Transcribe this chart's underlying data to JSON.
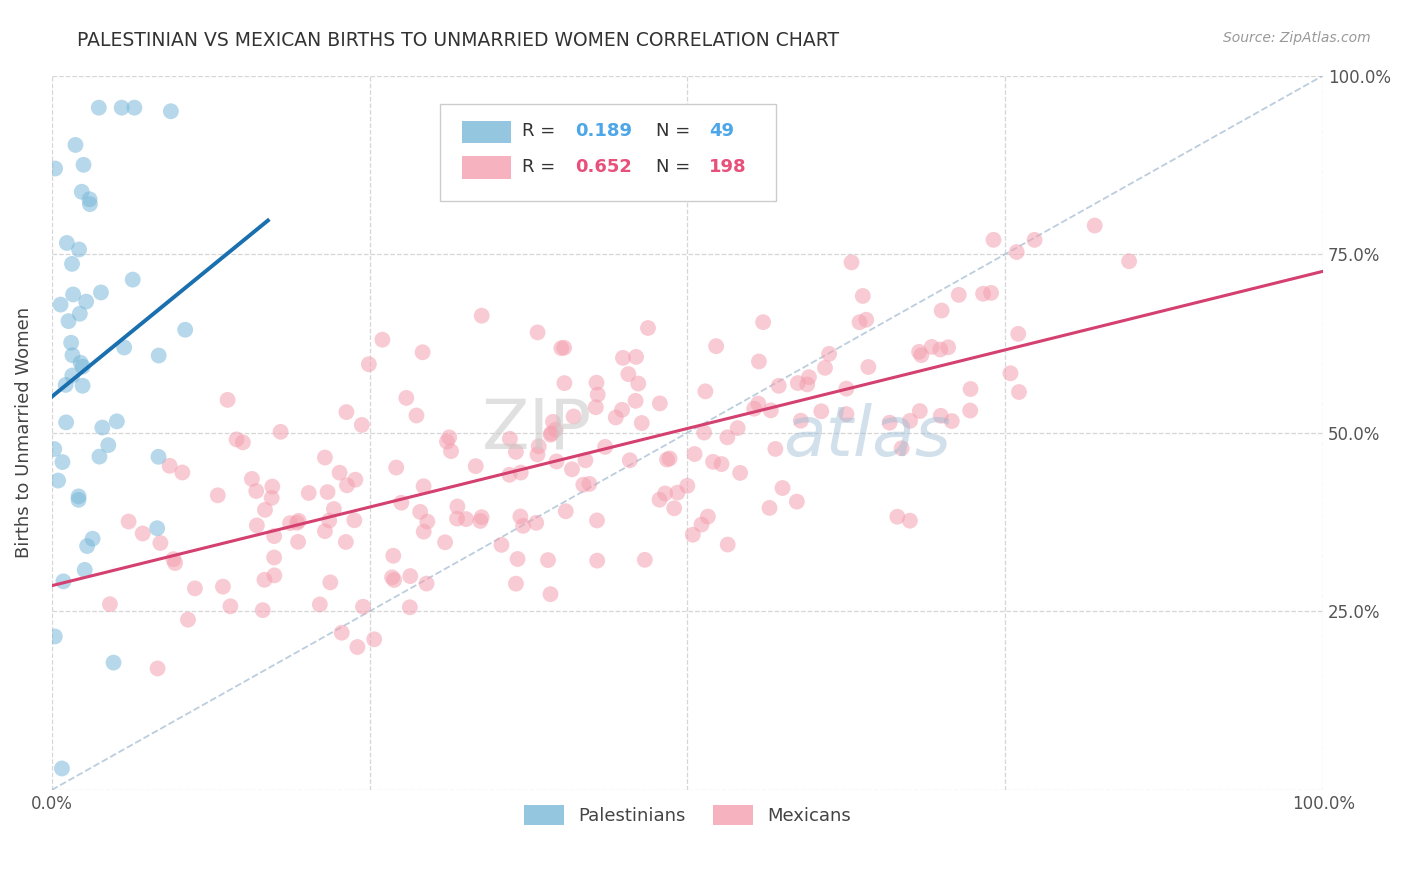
{
  "title": "PALESTINIAN VS MEXICAN BIRTHS TO UNMARRIED WOMEN CORRELATION CHART",
  "source": "Source: ZipAtlas.com",
  "ylabel": "Births to Unmarried Women",
  "xlim": [
    0,
    1
  ],
  "ylim": [
    0,
    1
  ],
  "xticks": [
    0,
    0.25,
    0.5,
    0.75,
    1.0
  ],
  "yticks": [
    0,
    0.25,
    0.5,
    0.75,
    1.0
  ],
  "right_ytick_labels": [
    "",
    "25.0%",
    "50.0%",
    "75.0%",
    "100.0%"
  ],
  "watermark_zip": "ZIP",
  "watermark_atlas": "atlas",
  "blue_color": "#7ab8d9",
  "pink_color": "#f4a0b0",
  "blue_line_color": "#1a6faf",
  "pink_line_color": "#d44070",
  "blue_R": 0.189,
  "blue_N": 49,
  "pink_R": 0.652,
  "pink_N": 198,
  "background_color": "#ffffff",
  "grid_color": "#cccccc",
  "title_color": "#333333",
  "legend_text_color": "#333333",
  "legend_blue_val_color": "#4da6e8",
  "legend_pink_val_color": "#e8507a",
  "seed_blue": 7,
  "seed_pink": 13
}
